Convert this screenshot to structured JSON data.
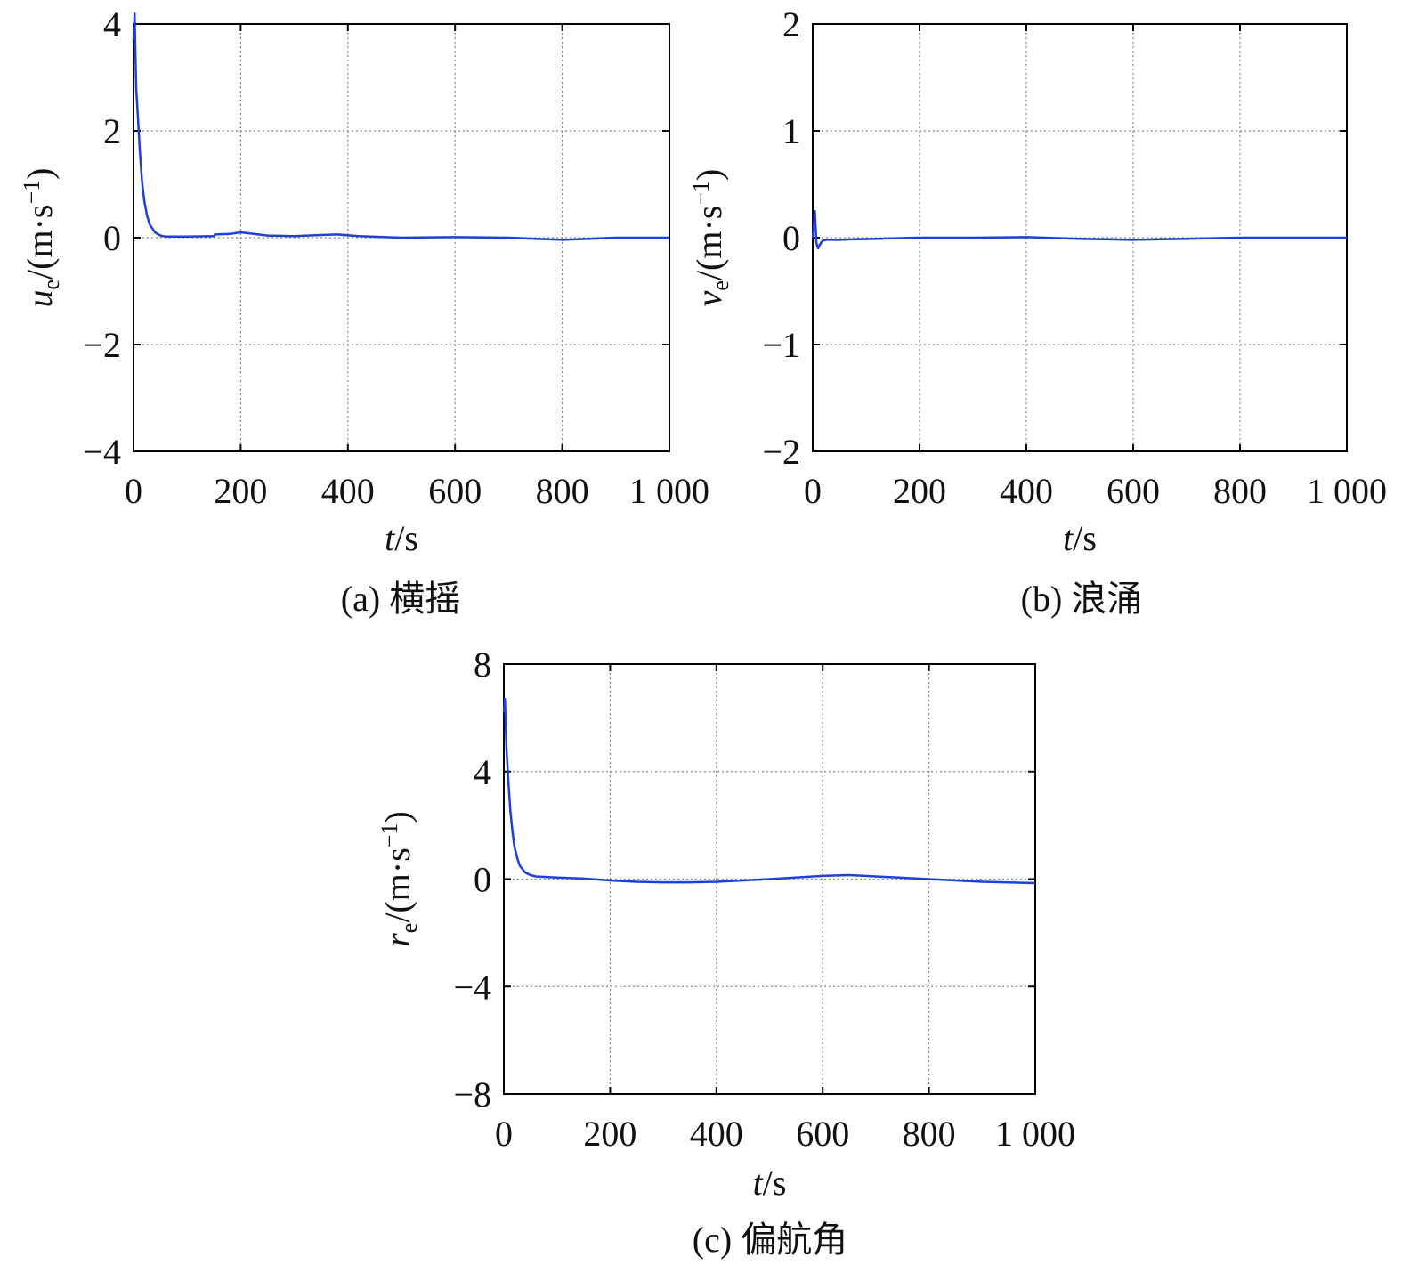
{
  "chart_data": [
    {
      "id": "a",
      "type": "line",
      "caption": "(a) 横摇",
      "ylabel_var": "u",
      "ylabel_sub": "e",
      "ylabel_unit": "/(m·s",
      "ylabel_exp": "−1",
      "ylabel_close": ")",
      "xlabel_var": "t",
      "xlabel_unit": "/s",
      "xlim": [
        0,
        1000
      ],
      "ylim": [
        -4,
        4
      ],
      "xticks": [
        0,
        200,
        400,
        600,
        800,
        1000
      ],
      "xtick_labels": [
        "0",
        "200",
        "400",
        "600",
        "800",
        "1 000"
      ],
      "yticks": [
        -4,
        -2,
        0,
        2,
        4
      ],
      "ytick_labels": [
        "−4",
        "−2",
        "0",
        "2",
        "4"
      ],
      "grid": true,
      "series": [
        {
          "color": "#1f3fd6",
          "x": [
            0,
            2,
            5,
            8,
            12,
            16,
            20,
            25,
            30,
            40,
            50,
            60,
            80,
            100,
            150,
            152,
            180,
            200,
            250,
            300,
            350,
            380,
            420,
            500,
            600,
            700,
            750,
            800,
            850,
            900,
            1000
          ],
          "y": [
            3.7,
            4.2,
            2.8,
            2.3,
            1.6,
            1.05,
            0.7,
            0.42,
            0.25,
            0.1,
            0.04,
            0.02,
            0.02,
            0.02,
            0.03,
            0.06,
            0.07,
            0.1,
            0.04,
            0.03,
            0.05,
            0.06,
            0.03,
            0.0,
            0.01,
            0.0,
            -0.02,
            -0.04,
            -0.02,
            0.0,
            0.0
          ]
        }
      ]
    },
    {
      "id": "b",
      "type": "line",
      "caption": "(b) 浪涌",
      "ylabel_var": "v",
      "ylabel_sub": "e",
      "ylabel_unit": "/(m·s",
      "ylabel_exp": "−1",
      "ylabel_close": ")",
      "xlabel_var": "t",
      "xlabel_unit": "/s",
      "xlim": [
        0,
        1000
      ],
      "ylim": [
        -2,
        2
      ],
      "xticks": [
        0,
        200,
        400,
        600,
        800,
        1000
      ],
      "xtick_labels": [
        "0",
        "200",
        "400",
        "600",
        "800",
        "1 000"
      ],
      "yticks": [
        -2,
        -1,
        0,
        1,
        2
      ],
      "ytick_labels": [
        "−2",
        "−1",
        "0",
        "1",
        "2"
      ],
      "grid": true,
      "series": [
        {
          "color": "#1f3fd6",
          "x": [
            0,
            2,
            4,
            5,
            7,
            10,
            14,
            18,
            25,
            35,
            50,
            80,
            120,
            200,
            300,
            400,
            500,
            600,
            700,
            800,
            900,
            1000
          ],
          "y": [
            0.0,
            0.1,
            0.25,
            0.15,
            -0.05,
            -0.1,
            -0.06,
            -0.03,
            -0.02,
            -0.02,
            -0.02,
            -0.015,
            -0.01,
            0.0,
            0.0,
            0.005,
            -0.01,
            -0.02,
            -0.01,
            0.0,
            0.0,
            0.0
          ]
        }
      ]
    },
    {
      "id": "c",
      "type": "line",
      "caption": "(c) 偏航角",
      "ylabel_var": "r",
      "ylabel_sub": "e",
      "ylabel_unit": "/(m·s",
      "ylabel_exp": "−1",
      "ylabel_close": ")",
      "xlabel_var": "t",
      "xlabel_unit": "/s",
      "xlim": [
        0,
        1000
      ],
      "ylim": [
        -8,
        8
      ],
      "xticks": [
        0,
        200,
        400,
        600,
        800,
        1000
      ],
      "xtick_labels": [
        "0",
        "200",
        "400",
        "600",
        "800",
        "1 000"
      ],
      "yticks": [
        -8,
        -4,
        0,
        4,
        8
      ],
      "ytick_labels": [
        "−8",
        "−4",
        "0",
        "4",
        "8"
      ],
      "grid": true,
      "series": [
        {
          "color": "#1f3fd6",
          "x": [
            0,
            2,
            5,
            8,
            12,
            16,
            20,
            25,
            30,
            40,
            50,
            60,
            80,
            100,
            150,
            200,
            250,
            300,
            350,
            400,
            500,
            600,
            650,
            700,
            800,
            900,
            1000
          ],
          "y": [
            6.2,
            6.7,
            4.8,
            3.8,
            2.6,
            1.8,
            1.2,
            0.8,
            0.5,
            0.25,
            0.15,
            0.1,
            0.08,
            0.06,
            0.02,
            -0.05,
            -0.1,
            -0.12,
            -0.12,
            -0.1,
            0.0,
            0.12,
            0.15,
            0.1,
            0.0,
            -0.1,
            -0.15
          ]
        }
      ]
    }
  ]
}
